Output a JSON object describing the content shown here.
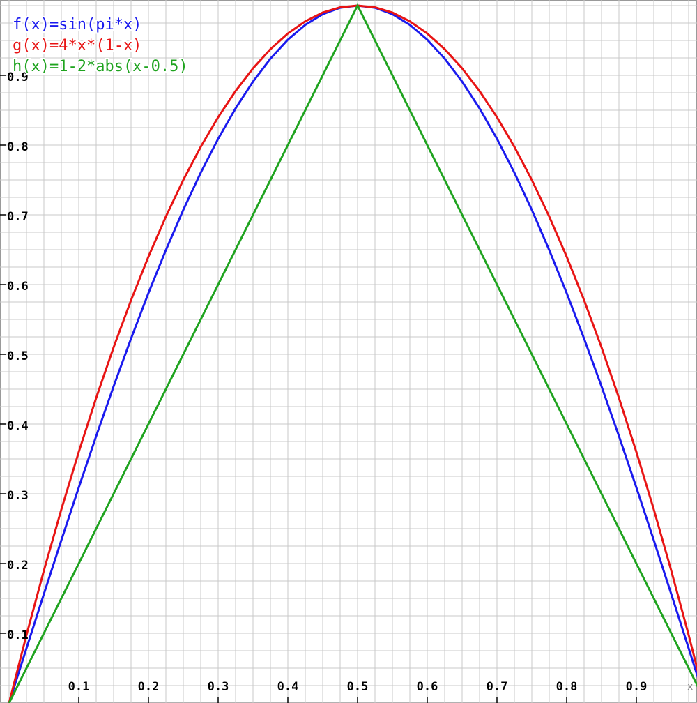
{
  "chart_data": {
    "type": "line",
    "x": [
      0,
      0.025,
      0.05,
      0.075,
      0.1,
      0.125,
      0.15,
      0.175,
      0.2,
      0.225,
      0.25,
      0.275,
      0.3,
      0.325,
      0.35,
      0.375,
      0.4,
      0.425,
      0.45,
      0.475,
      0.5,
      0.525,
      0.55,
      0.575,
      0.6,
      0.625,
      0.65,
      0.675,
      0.7,
      0.725,
      0.75,
      0.775,
      0.8,
      0.825,
      0.85,
      0.875,
      0.9,
      0.925,
      0.95,
      0.975,
      1
    ],
    "series": [
      {
        "name": "f(x)=sin(pi*x)",
        "color": "#1a1aee",
        "values": [
          0,
          0.0785,
          0.1564,
          0.2334,
          0.309,
          0.3827,
          0.454,
          0.5225,
          0.5878,
          0.6494,
          0.7071,
          0.7604,
          0.809,
          0.8526,
          0.891,
          0.9239,
          0.9511,
          0.9724,
          0.9877,
          0.9969,
          1,
          0.9969,
          0.9877,
          0.9724,
          0.9511,
          0.9239,
          0.891,
          0.8526,
          0.809,
          0.7604,
          0.7071,
          0.6494,
          0.5878,
          0.5225,
          0.454,
          0.3827,
          0.309,
          0.2334,
          0.1564,
          0.0785,
          0
        ]
      },
      {
        "name": "g(x)=4*x*(1-x)",
        "color": "#e81414",
        "values": [
          0,
          0.0975,
          0.19,
          0.2775,
          0.36,
          0.4375,
          0.51,
          0.5775,
          0.64,
          0.6975,
          0.75,
          0.7975,
          0.84,
          0.8775,
          0.91,
          0.9375,
          0.96,
          0.9775,
          0.99,
          0.9975,
          1,
          0.9975,
          0.99,
          0.9775,
          0.96,
          0.9375,
          0.91,
          0.8775,
          0.84,
          0.7975,
          0.75,
          0.6975,
          0.64,
          0.5775,
          0.51,
          0.4375,
          0.36,
          0.2775,
          0.19,
          0.0975,
          0
        ]
      },
      {
        "name": "h(x)=1-2*abs(x-0.5)",
        "color": "#1fa31f",
        "values": [
          0,
          0.05,
          0.1,
          0.15,
          0.2,
          0.25,
          0.3,
          0.35,
          0.4,
          0.45,
          0.5,
          0.55,
          0.6,
          0.65,
          0.7,
          0.75,
          0.8,
          0.85,
          0.9,
          0.95,
          1,
          0.95,
          0.9,
          0.85,
          0.8,
          0.75,
          0.7,
          0.65,
          0.6,
          0.55,
          0.5,
          0.45,
          0.4,
          0.35,
          0.3,
          0.25,
          0.2,
          0.15,
          0.1,
          0.05,
          0
        ]
      }
    ],
    "x_label": "x",
    "xlim": [
      0,
      1
    ],
    "ylim": [
      0,
      1
    ],
    "xticks": [
      0.1,
      0.2,
      0.3,
      0.4,
      0.5,
      0.6,
      0.7,
      0.8,
      0.9
    ],
    "yticks": [
      0.1,
      0.2,
      0.3,
      0.4,
      0.5,
      0.6,
      0.7,
      0.8,
      0.9
    ],
    "grid": true,
    "xgrid": [
      0,
      0.025,
      0.05,
      0.075,
      0.1,
      0.125,
      0.15,
      0.175,
      0.2,
      0.225,
      0.25,
      0.275,
      0.3,
      0.325,
      0.35,
      0.375,
      0.4,
      0.425,
      0.45,
      0.475,
      0.5,
      0.525,
      0.55,
      0.575,
      0.6,
      0.625,
      0.65,
      0.675,
      0.7,
      0.725,
      0.75,
      0.775,
      0.8,
      0.825,
      0.85,
      0.875,
      0.9,
      0.925,
      0.95,
      0.975,
      1
    ],
    "ygrid": [
      0,
      0.025,
      0.05,
      0.075,
      0.1,
      0.125,
      0.15,
      0.175,
      0.2,
      0.225,
      0.25,
      0.275,
      0.3,
      0.325,
      0.35,
      0.375,
      0.4,
      0.425,
      0.45,
      0.475,
      0.5,
      0.525,
      0.55,
      0.575,
      0.6,
      0.625,
      0.65,
      0.675,
      0.7,
      0.725,
      0.75,
      0.775,
      0.8,
      0.825,
      0.85,
      0.875,
      0.9,
      0.925,
      0.95,
      0.975,
      1
    ],
    "legend": "top-left"
  }
}
